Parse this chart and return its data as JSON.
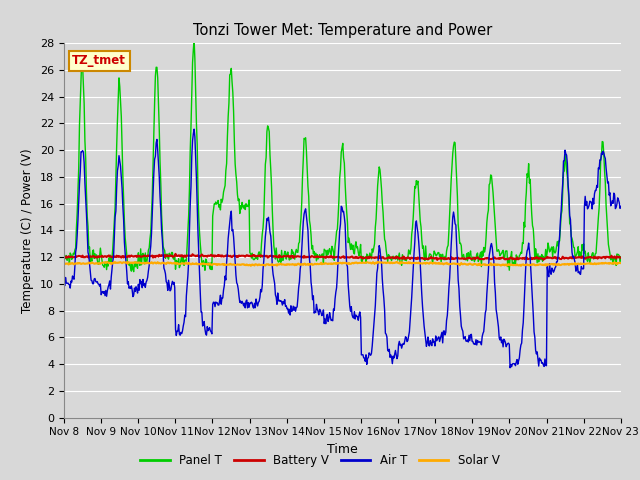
{
  "title": "Tonzi Tower Met: Temperature and Power",
  "xlabel": "Time",
  "ylabel": "Temperature (C) / Power (V)",
  "ylim": [
    0,
    28
  ],
  "yticks": [
    0,
    2,
    4,
    6,
    8,
    10,
    12,
    14,
    16,
    18,
    20,
    22,
    24,
    26,
    28
  ],
  "x_labels": [
    "Nov 8",
    "Nov 9",
    "Nov 10",
    "Nov 11",
    "Nov 12",
    "Nov 13",
    "Nov 14",
    "Nov 15",
    "Nov 16",
    "Nov 17",
    "Nov 18",
    "Nov 19",
    "Nov 20",
    "Nov 21",
    "Nov 22",
    "Nov 23"
  ],
  "annotation_text": "TZ_tmet",
  "annotation_color": "#cc0000",
  "annotation_bg": "#ffffcc",
  "colors": {
    "panel_t": "#00cc00",
    "battery_v": "#cc0000",
    "air_t": "#0000cc",
    "solar_v": "#ffaa00"
  },
  "legend_labels": [
    "Panel T",
    "Battery V",
    "Air T",
    "Solar V"
  ],
  "bg_color": "#d8d8d8",
  "plot_bg": "#d8d8d8",
  "grid_color": "#ffffff"
}
